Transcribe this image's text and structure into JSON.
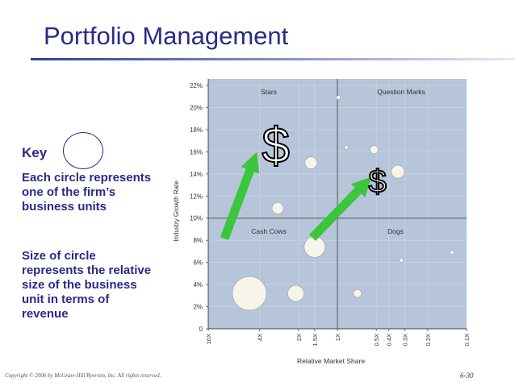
{
  "slide": {
    "title": "Portfolio Management",
    "key_label": "Key",
    "key_desc1": "Each circle represents one of the firm’s business units",
    "key_desc2": "Size of circle represents the relative size of the business unit in terms of revenue",
    "footer_copyright": "Copyright © 2006 by McGraw-Hill Ryerson, Inc.  All rights reserved.",
    "footer_page": "6-30"
  },
  "colors": {
    "plot_bg": "#b6c5d9",
    "grid": "#c9d4e3",
    "bubble": "#f7f4ea",
    "arrow": "#3cc63c",
    "title": "#2a2a8a"
  },
  "chart_data": {
    "type": "scatter",
    "ylabel": "Industry Growth Rate",
    "xlabel": "Relative Market Share",
    "y_ticks": [
      "0",
      "2%",
      "4%",
      "6%",
      "8%",
      "10%",
      "12%",
      "14%",
      "16%",
      "18%",
      "20%",
      "22%"
    ],
    "ylim": [
      0,
      22
    ],
    "x_ticks": [
      "10X",
      "4X",
      "2X",
      "1.5X",
      "1X",
      "0.5X",
      "0.4X",
      "0.3X",
      "0.2X",
      "0.1X"
    ],
    "x_scale": "log-reversed",
    "xlim": [
      10,
      0.1
    ],
    "quadrants": [
      "Stars",
      "Question Marks",
      "Cash Cows",
      "Dogs"
    ],
    "bubbles": [
      {
        "share": 4.8,
        "growth": 3.2,
        "size": 21
      },
      {
        "share": 2.1,
        "growth": 3.2,
        "size": 10
      },
      {
        "share": 1.5,
        "growth": 7.4,
        "size": 13
      },
      {
        "share": 0.7,
        "growth": 3.2,
        "size": 5
      },
      {
        "share": 2.9,
        "growth": 10.9,
        "size": 7
      },
      {
        "share": 1.6,
        "growth": 15.0,
        "size": 7.5
      },
      {
        "share": 0.98,
        "growth": 20.9,
        "size": 2.5
      },
      {
        "share": 0.85,
        "growth": 16.4,
        "size": 2.5
      },
      {
        "share": 0.52,
        "growth": 16.2,
        "size": 5
      },
      {
        "share": 0.34,
        "growth": 14.2,
        "size": 8
      },
      {
        "share": 0.32,
        "growth": 6.2,
        "size": 2.5
      },
      {
        "share": 0.13,
        "growth": 6.9,
        "size": 2.5
      }
    ],
    "dollar_signs": [
      {
        "text": "$",
        "share": 3.0,
        "growth": 16.5,
        "size": "large"
      },
      {
        "text": "$",
        "share": 0.49,
        "growth": 13.3,
        "size": "small"
      }
    ]
  }
}
